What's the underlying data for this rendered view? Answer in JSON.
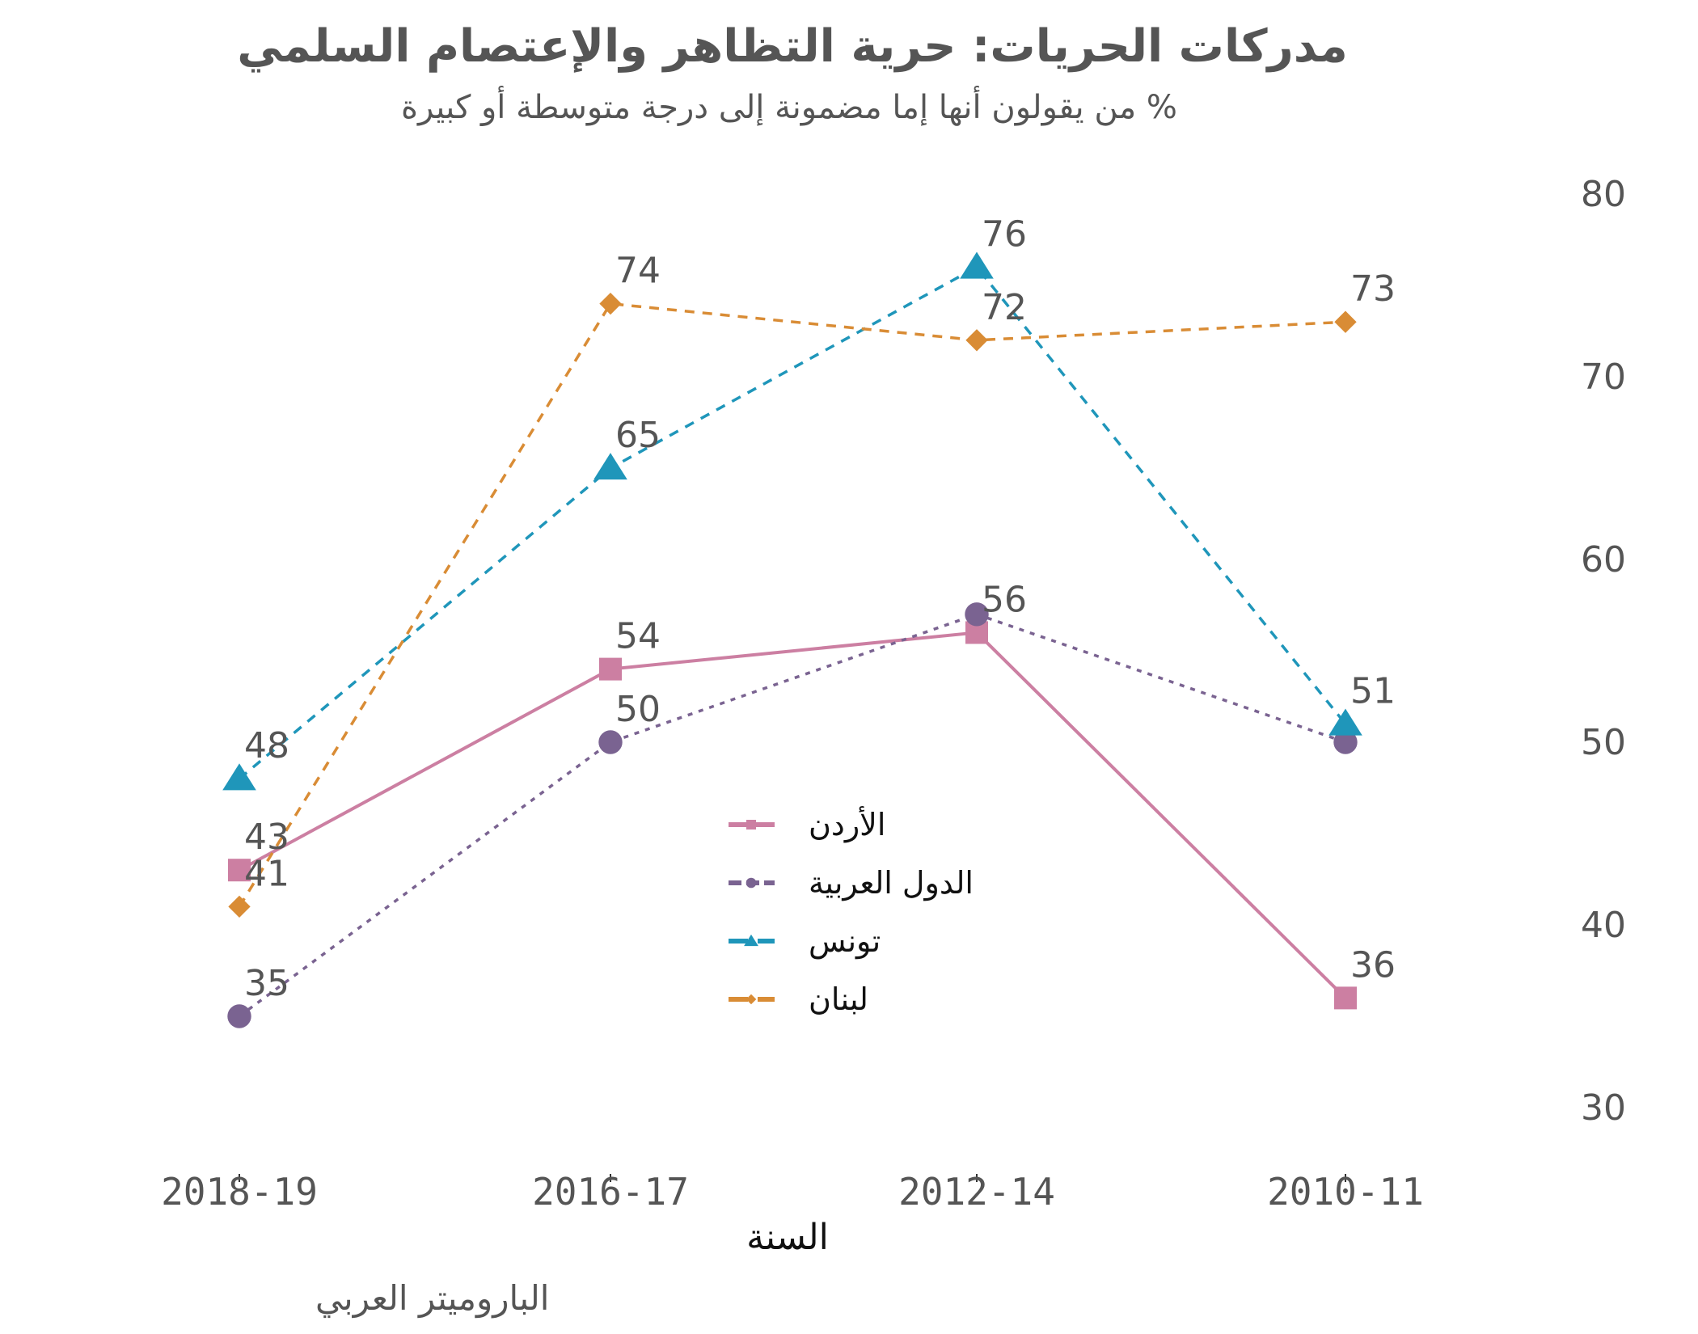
{
  "chart_data": {
    "type": "line",
    "title": "مدركات الحريات: حرية التظاهر والإعتصام السلمي",
    "subtitle": "% من يقولون أنها إما مضمونة إلى درجة متوسطة أو كبيرة",
    "xlabel": "السنة",
    "ylabel": "",
    "caption": "الباروميتر العربي",
    "categories": [
      "2018-19",
      "2016-17",
      "2012-14",
      "2010-11"
    ],
    "y_ticks": [
      30,
      40,
      50,
      60,
      70,
      80
    ],
    "ylim": [
      30,
      80
    ],
    "y_axis_side": "right",
    "grid": false,
    "legend_position": "center",
    "series": [
      {
        "name": "الأردن",
        "color": "#CC7FA2",
        "line_style": "solid",
        "marker": "square",
        "values": [
          43,
          54,
          56,
          36
        ],
        "labels_shown": [
          true,
          true,
          true,
          true
        ]
      },
      {
        "name": "الدول العربية",
        "color": "#7A6391",
        "line_style": "dotted",
        "marker": "circle",
        "values": [
          35,
          50,
          57,
          50
        ],
        "labels_shown": [
          true,
          true,
          false,
          false
        ]
      },
      {
        "name": "تونس",
        "color": "#1F96BA",
        "line_style": "dashed",
        "marker": "triangle",
        "values": [
          48,
          65,
          76,
          51
        ],
        "labels_shown": [
          true,
          true,
          true,
          true
        ]
      },
      {
        "name": "لبنان",
        "color": "#D98C35",
        "line_style": "dashed",
        "marker": "diamond",
        "values": [
          41,
          74,
          72,
          73
        ],
        "labels_shown": [
          true,
          true,
          true,
          true
        ]
      }
    ]
  }
}
